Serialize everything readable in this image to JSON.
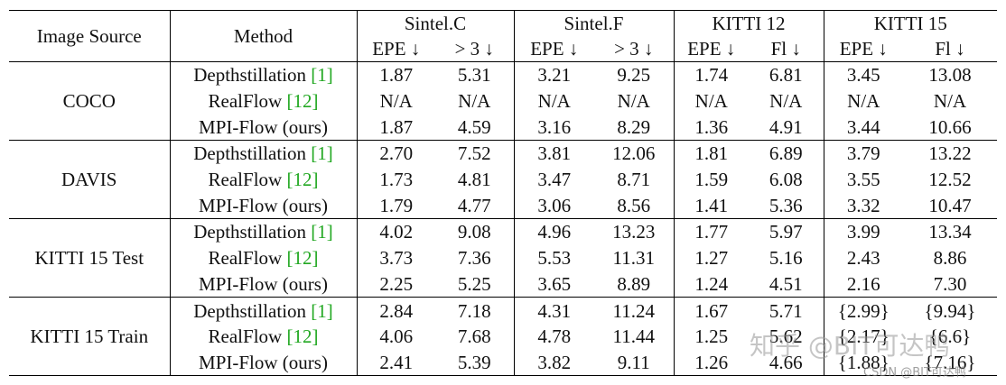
{
  "header": {
    "image_source": "Image Source",
    "method": "Method",
    "datasets": [
      "Sintel.C",
      "Sintel.F",
      "KITTI 12",
      "KITTI 15"
    ],
    "metrics": [
      "EPE ↓",
      "> 3 ↓",
      "EPE ↓",
      "> 3 ↓",
      "EPE ↓",
      "Fl ↓",
      "EPE ↓",
      "Fl ↓"
    ]
  },
  "groups": [
    {
      "source": "COCO",
      "rows": [
        {
          "method": "Depthstillation ",
          "cite": "[1]",
          "values": [
            "1.87",
            "5.31",
            "3.21",
            "9.25",
            "1.74",
            "6.81",
            "3.45",
            "13.08"
          ],
          "bold": [
            true,
            false,
            false,
            false,
            false,
            false,
            false,
            false
          ]
        },
        {
          "method": "RealFlow ",
          "cite": "[12]",
          "values": [
            "N/A",
            "N/A",
            "N/A",
            "N/A",
            "N/A",
            "N/A",
            "N/A",
            "N/A"
          ],
          "bold": [
            false,
            false,
            false,
            false,
            false,
            false,
            false,
            false
          ]
        },
        {
          "method": "MPI-Flow (ours)",
          "cite": "",
          "values": [
            "1.87",
            "4.59",
            "3.16",
            "8.29",
            "1.36",
            "4.91",
            "3.44",
            "10.66"
          ],
          "bold": [
            true,
            true,
            true,
            true,
            true,
            true,
            true,
            true
          ]
        }
      ]
    },
    {
      "source": "DAVIS",
      "rows": [
        {
          "method": "Depthstillation ",
          "cite": "[1]",
          "values": [
            "2.70",
            "7.52",
            "3.81",
            "12.06",
            "1.81",
            "6.89",
            "3.79",
            "13.22"
          ],
          "bold": [
            false,
            false,
            false,
            false,
            false,
            false,
            false,
            false
          ]
        },
        {
          "method": "RealFlow ",
          "cite": "[12]",
          "values": [
            "1.73",
            "4.81",
            "3.47",
            "8.71",
            "1.59",
            "6.08",
            "3.55",
            "12.52"
          ],
          "bold": [
            true,
            false,
            false,
            false,
            false,
            false,
            false,
            false
          ]
        },
        {
          "method": "MPI-Flow (ours)",
          "cite": "",
          "values": [
            "1.79",
            "4.77",
            "3.06",
            "8.56",
            "1.41",
            "5.36",
            "3.32",
            "10.47"
          ],
          "bold": [
            false,
            true,
            true,
            true,
            true,
            true,
            true,
            true
          ]
        }
      ]
    },
    {
      "source": "KITTI 15 Test",
      "rows": [
        {
          "method": "Depthstillation ",
          "cite": "[1]",
          "values": [
            "4.02",
            "9.08",
            "4.96",
            "13.23",
            "1.77",
            "5.97",
            "3.99",
            "13.34"
          ],
          "bold": [
            false,
            false,
            false,
            false,
            false,
            false,
            false,
            false
          ]
        },
        {
          "method": "RealFlow ",
          "cite": "[12]",
          "values": [
            "3.73",
            "7.36",
            "5.53",
            "11.31",
            "1.27",
            "5.16",
            "2.43",
            "8.86"
          ],
          "bold": [
            false,
            false,
            false,
            false,
            false,
            false,
            false,
            false
          ]
        },
        {
          "method": "MPI-Flow (ours)",
          "cite": "",
          "values": [
            "2.25",
            "5.25",
            "3.65",
            "8.89",
            "1.24",
            "4.51",
            "2.16",
            "7.30"
          ],
          "bold": [
            true,
            true,
            true,
            true,
            true,
            true,
            true,
            true
          ]
        }
      ]
    },
    {
      "source": "KITTI 15 Train",
      "rows": [
        {
          "method": "Depthstillation ",
          "cite": "[1]",
          "values": [
            "2.84",
            "7.18",
            "4.31",
            "11.24",
            "1.67",
            "5.71",
            "{2.99}",
            "{9.94}"
          ],
          "bold": [
            false,
            false,
            false,
            false,
            false,
            false,
            false,
            false
          ]
        },
        {
          "method": "RealFlow ",
          "cite": "[12]",
          "values": [
            "4.06",
            "7.68",
            "4.78",
            "11.44",
            "1.25",
            "5.62",
            "{2.17}",
            "{6.6}"
          ],
          "bold": [
            false,
            false,
            false,
            false,
            true,
            false,
            false,
            false
          ]
        },
        {
          "method": "MPI-Flow (ours)",
          "cite": "",
          "values": [
            "2.41",
            "5.39",
            "3.82",
            "9.11",
            "1.26",
            "4.66",
            "{1.88}",
            "{7.16}"
          ],
          "bold": [
            true,
            true,
            true,
            true,
            false,
            true,
            true,
            true
          ]
        }
      ]
    }
  ],
  "watermark": {
    "main": "知乎 @BIT可达鸭",
    "csdn": "CSDN @BIT可达鸭"
  }
}
